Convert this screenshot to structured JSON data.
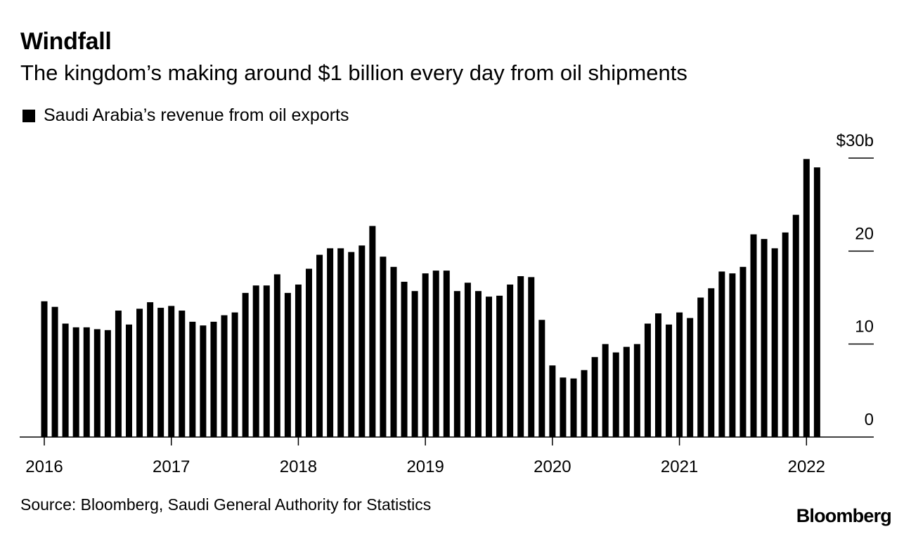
{
  "title": "Windfall",
  "subtitle": "The kingdom’s making around $1 billion every day from oil shipments",
  "legend": {
    "label": "Saudi Arabia’s revenue from oil exports",
    "color": "#000000"
  },
  "source": "Source: Bloomberg, Saudi General Authority for Statistics",
  "logo": "Bloomberg",
  "chart_data": {
    "type": "bar",
    "frequency": "monthly",
    "start": "2016-01",
    "series": [
      {
        "name": "Saudi Arabia’s revenue from oil exports",
        "color": "#000000",
        "values": [
          14.6,
          14.0,
          12.2,
          11.8,
          11.8,
          11.6,
          11.5,
          13.6,
          12.1,
          13.8,
          14.5,
          13.9,
          14.1,
          13.6,
          12.4,
          12.0,
          12.4,
          13.1,
          13.4,
          15.5,
          16.3,
          16.3,
          17.5,
          15.5,
          16.4,
          18.1,
          19.6,
          20.3,
          20.3,
          19.9,
          20.6,
          22.7,
          19.4,
          18.3,
          16.7,
          15.7,
          17.6,
          17.9,
          17.9,
          15.7,
          16.6,
          15.7,
          15.1,
          15.2,
          16.4,
          17.3,
          17.2,
          12.6,
          7.7,
          6.4,
          6.3,
          7.2,
          8.6,
          10.0,
          9.1,
          9.7,
          10.0,
          12.2,
          13.3,
          12.1,
          13.4,
          12.8,
          15.0,
          16.0,
          17.8,
          17.6,
          18.3,
          21.8,
          21.3,
          20.3,
          22.0,
          23.9,
          29.9,
          29.0
        ]
      }
    ],
    "x_tick_labels": [
      "2016",
      "2017",
      "2018",
      "2019",
      "2020",
      "2021",
      "2022"
    ],
    "y_ticks": [
      0,
      10,
      20,
      30
    ],
    "y_tick_labels": [
      "0",
      "10",
      "20",
      "$30b"
    ],
    "ylim": [
      0,
      30
    ],
    "y_axis_side": "right",
    "grid": false
  }
}
